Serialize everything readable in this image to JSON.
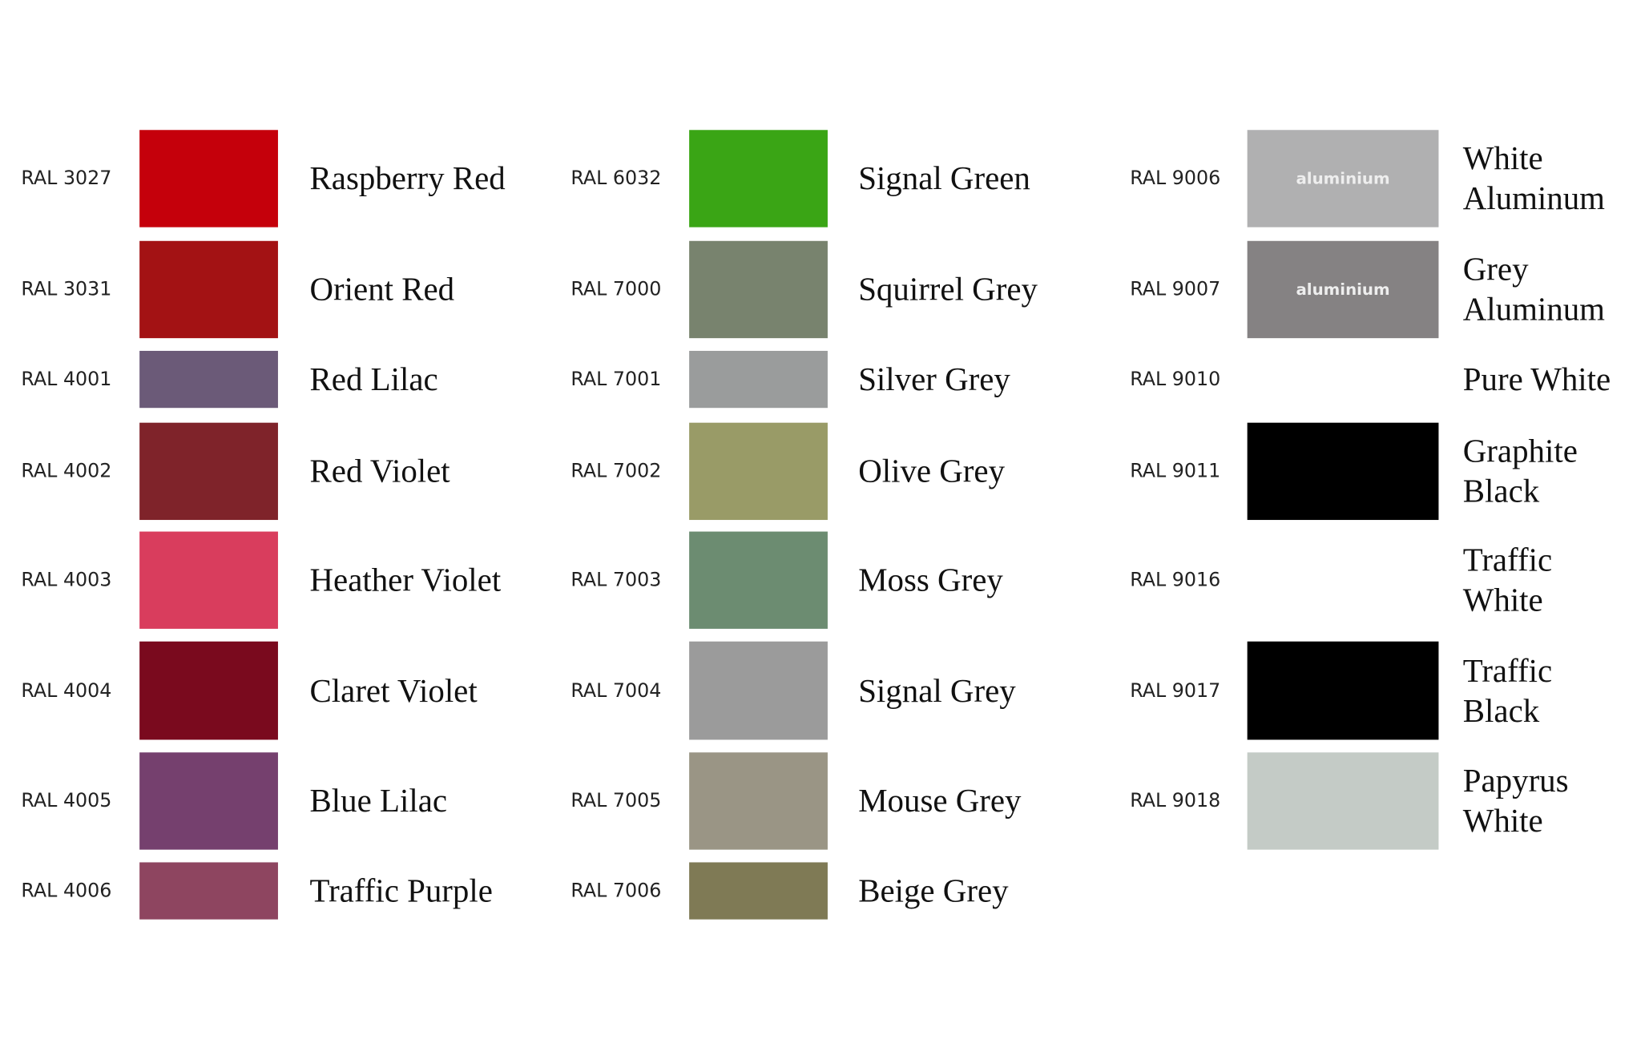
{
  "columns": [
    {
      "items": [
        {
          "code": "RAL 3027",
          "name": "Raspberry Red",
          "color": "#c5000b"
        },
        {
          "code": "RAL 3031",
          "name": "Orient Red",
          "color": "#a31214"
        },
        {
          "code": "RAL 4001",
          "name": "Red Lilac",
          "color": "#6b5a78"
        },
        {
          "code": "RAL 4002",
          "name": "Red Violet",
          "color": "#7f232a"
        },
        {
          "code": "RAL 4003",
          "name": "Heather Violet",
          "color": "#d93d5d"
        },
        {
          "code": "RAL 4004",
          "name": "Claret Violet",
          "color": "#7a0a1e"
        },
        {
          "code": "RAL 4005",
          "name": "Blue Lilac",
          "color": "#75406e"
        },
        {
          "code": "RAL 4006",
          "name": "Traffic Purple",
          "color": "#8e4560"
        }
      ]
    },
    {
      "items": [
        {
          "code": "RAL 6032",
          "name": "Signal Green",
          "color": "#3aa515"
        },
        {
          "code": "RAL 7000",
          "name": "Squirrel Grey",
          "color": "#78836e"
        },
        {
          "code": "RAL 7001",
          "name": "Silver Grey",
          "color": "#9a9c9c"
        },
        {
          "code": "RAL 7002",
          "name": "Olive Grey",
          "color": "#999b67"
        },
        {
          "code": "RAL 7003",
          "name": "Moss Grey",
          "color": "#6c8c71"
        },
        {
          "code": "RAL 7004",
          "name": "Signal Grey",
          "color": "#9b9b9b"
        },
        {
          "code": "RAL 7005",
          "name": "Mouse Grey",
          "color": "#9a9585"
        },
        {
          "code": "RAL 7006",
          "name": "Beige Grey",
          "color": "#7f7a55"
        }
      ]
    },
    {
      "items": [
        {
          "code": "RAL 9006",
          "name": "White\nAluminum",
          "color": "#b0b0b1",
          "swatch_text": "aluminium"
        },
        {
          "code": "RAL 9007",
          "name": "Grey\nAluminum",
          "color": "#858283",
          "swatch_text": "aluminium"
        },
        {
          "code": "RAL 9010",
          "name": "Pure White",
          "color": "#ffffff"
        },
        {
          "code": "RAL 9011",
          "name": "Graphite\nBlack",
          "color": "#000000"
        },
        {
          "code": "RAL 9016",
          "name": "Traffic\nWhite",
          "color": "#ffffff"
        },
        {
          "code": "RAL 9017",
          "name": "Traffic\nBlack",
          "color": "#000000"
        },
        {
          "code": "RAL 9018",
          "name": "Papyrus\nWhite",
          "color": "#c4cbc6"
        }
      ]
    }
  ]
}
